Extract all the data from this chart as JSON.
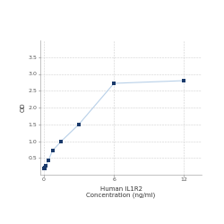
{
  "x": [
    0,
    0.047,
    0.094,
    0.188,
    0.375,
    0.75,
    1.5,
    3,
    6,
    12
  ],
  "y": [
    0.175,
    0.19,
    0.22,
    0.275,
    0.42,
    0.72,
    1.0,
    1.5,
    2.72,
    2.8
  ],
  "line_color": "#b8d0e8",
  "marker_color": "#1a3a6b",
  "marker_size": 3.5,
  "xlabel_line1": "Human IL1R2",
  "xlabel_line2": "Concentration (ng/ml)",
  "ylabel": "OD",
  "ylim": [
    0.0,
    4.0
  ],
  "xlim": [
    -0.3,
    13.5
  ],
  "yticks": [
    0.5,
    1.0,
    1.5,
    2.0,
    2.5,
    3.0,
    3.5
  ],
  "xticks": [
    0,
    6,
    12
  ],
  "xtick_labels": [
    "0",
    "6",
    "12"
  ],
  "grid_color": "#d0d0d0",
  "background_color": "#ffffff",
  "axis_fontsize": 5.0,
  "tick_fontsize": 4.5,
  "linewidth": 0.8
}
